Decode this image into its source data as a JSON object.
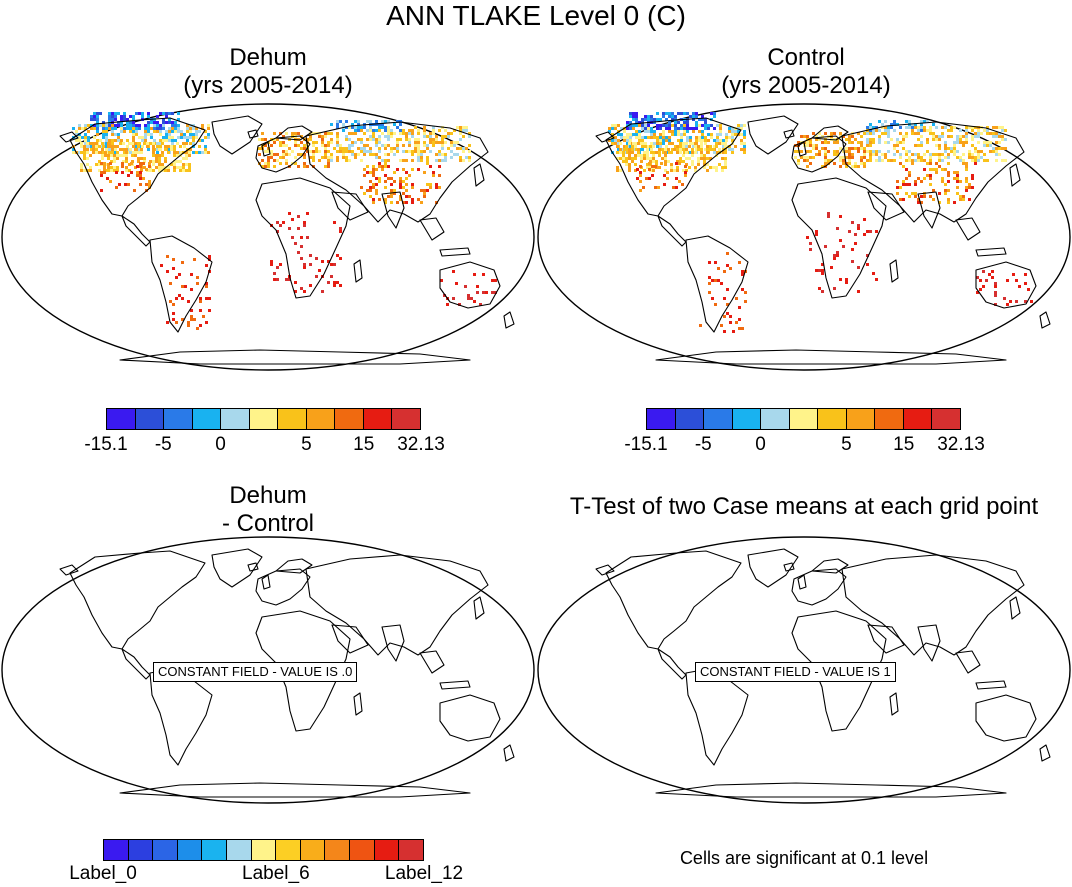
{
  "main_title": "ANN TLAKE Level 0 (C)",
  "panels": [
    {
      "title_line1": "Dehum",
      "title_line2": "(yrs 2005-2014)",
      "field": "lake_temp"
    },
    {
      "title_line1": "Control",
      "title_line2": "(yrs 2005-2014)",
      "field": "lake_temp"
    },
    {
      "title_line1": "Dehum",
      "title_line2": "- Control",
      "field": "constant",
      "constant_text": "CONSTANT FIELD - VALUE IS .0"
    },
    {
      "title_line1": "T-Test of two Case means at each grid point",
      "title_line2": "",
      "field": "constant",
      "constant_text": "CONSTANT FIELD - VALUE IS 1"
    }
  ],
  "colorbar_top": {
    "colors": [
      "#3a1af0",
      "#2c4fd8",
      "#2a7ae8",
      "#19b2f0",
      "#a8d8ec",
      "#fff38a",
      "#f9c21a",
      "#f8a11a",
      "#f06a10",
      "#e61c12",
      "#d63030"
    ],
    "labels": [
      "-15.1",
      "-5",
      "0",
      "5",
      "15",
      "32.13"
    ]
  },
  "colorbar_bottom": {
    "colors": [
      "#3a1af0",
      "#2c3fe0",
      "#2b65e6",
      "#1d8eea",
      "#1ab3ef",
      "#a8d8ec",
      "#fff38a",
      "#fccf24",
      "#f9ad1a",
      "#f4861a",
      "#ef5412",
      "#e61c12",
      "#d63030"
    ],
    "labels": [
      "Label_0",
      "Label_6",
      "Label_12"
    ]
  },
  "significance_note": "Cells are significant at 0.1 level"
}
